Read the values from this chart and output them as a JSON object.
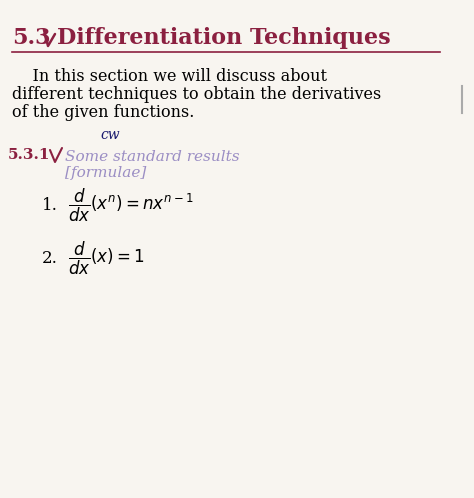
{
  "bg_color": "#f8f5f0",
  "title_number": "5.3",
  "title_slash": "/",
  "title_text": "Differentiation Techniques",
  "title_color": "#8b2040",
  "underline_color": "#8b2040",
  "body_text_1": "    In this section we will discuss about",
  "body_text_2": "different techniques to obtain the derivatives",
  "body_text_3": "of the given functions.",
  "cw_label": "cw",
  "subsection_label": "5.3.1",
  "subsection_label_color": "#8b2040",
  "subsection_title": "Some standard results",
  "subsection_subtitle": "[formulae]",
  "subsection_color": "#9b8ec4",
  "formula1_number": "1.",
  "formula2_number": "2.",
  "body_font_size": 11.5,
  "title_font_size": 16,
  "sub_font_size": 11,
  "formula_font_size": 12,
  "right_bar_color": "#aaaaaa"
}
